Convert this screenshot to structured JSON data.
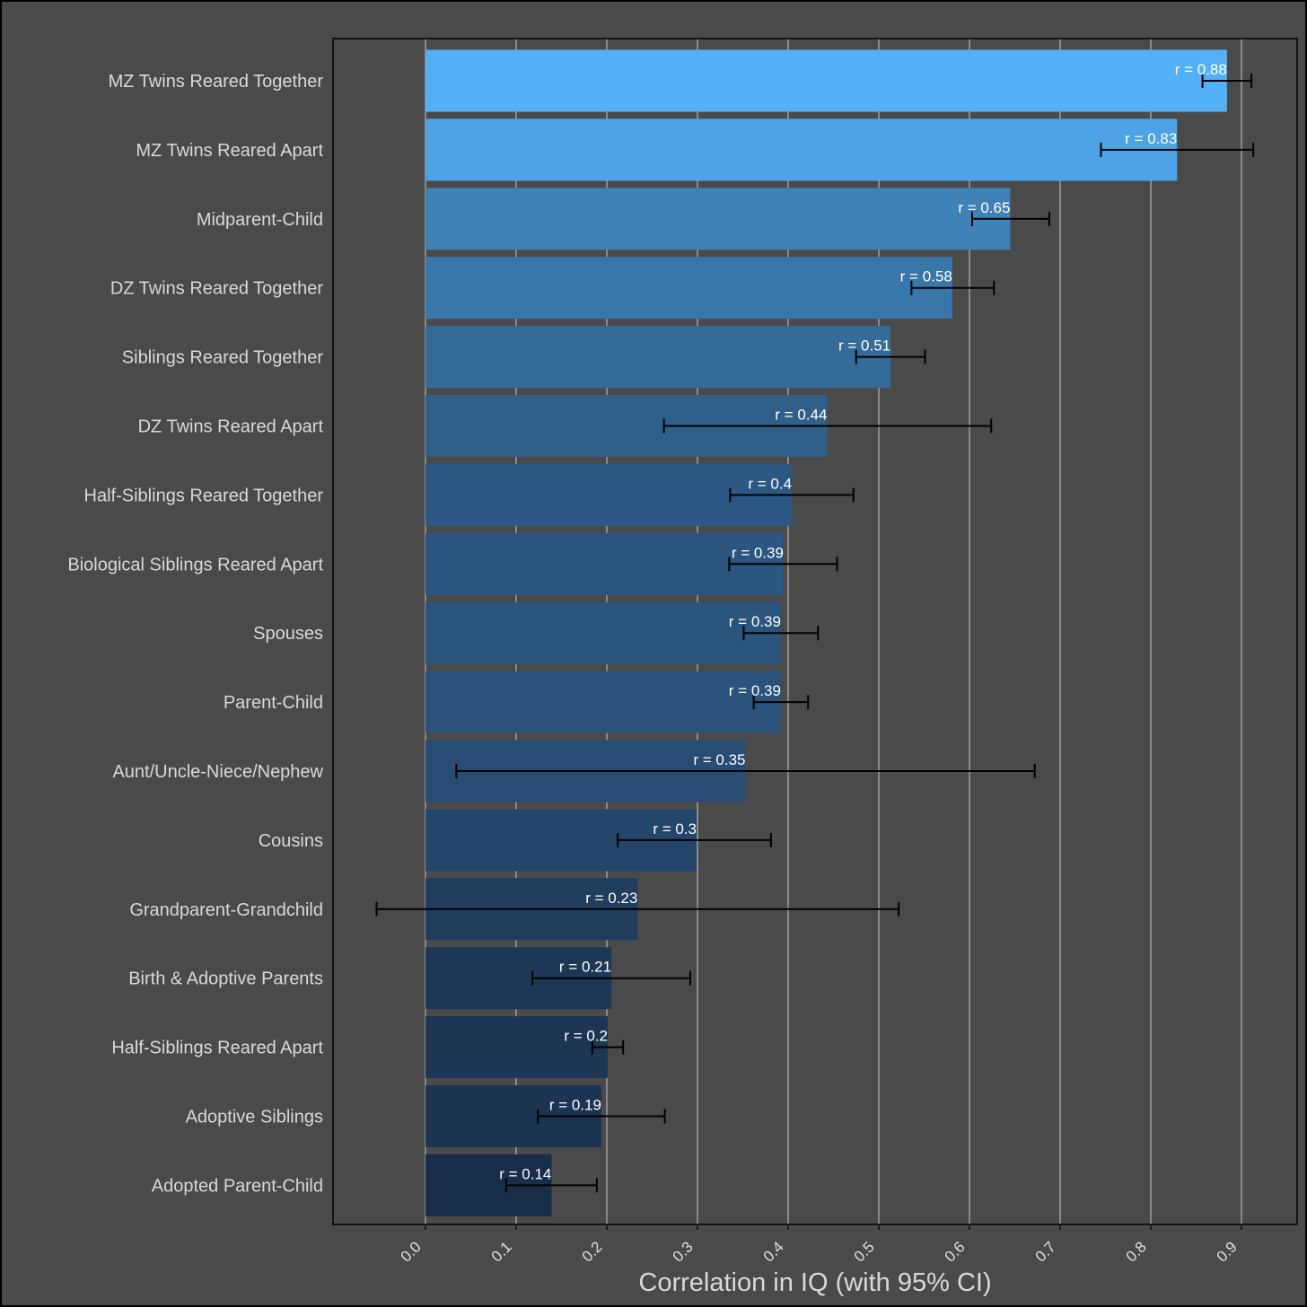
{
  "chart_data": {
    "type": "bar",
    "orientation": "horizontal",
    "xlabel": "Correlation in IQ (with 95% CI)",
    "xlim": [
      -0.1,
      0.96
    ],
    "xticks": [
      0.0,
      0.1,
      0.2,
      0.3,
      0.4,
      0.5,
      0.6,
      0.7,
      0.8,
      0.9
    ],
    "xtick_labels": [
      "0.0",
      "0.1",
      "0.2",
      "0.3",
      "0.4",
      "0.5",
      "0.6",
      "0.7",
      "0.8",
      "0.9"
    ],
    "grid": true,
    "colors": {
      "background": "#4a4a4a",
      "plot_border": "#000000",
      "grid": "#9a9a9a",
      "error_bar": "#000000"
    },
    "bars": [
      {
        "category": "MZ Twins Reared Together",
        "value": 0.884,
        "ci_low": 0.857,
        "ci_high": 0.911,
        "label": "r = 0.88",
        "color": "#54b0f6"
      },
      {
        "category": "MZ Twins Reared Apart",
        "value": 0.829,
        "ci_low": 0.745,
        "ci_high": 0.913,
        "label": "r = 0.83",
        "color": "#4ea3e6"
      },
      {
        "category": "Midparent-Child",
        "value": 0.645,
        "ci_low": 0.603,
        "ci_high": 0.688,
        "label": "r = 0.65",
        "color": "#3f82b8"
      },
      {
        "category": "DZ Twins Reared Together",
        "value": 0.581,
        "ci_low": 0.536,
        "ci_high": 0.627,
        "label": "r = 0.58",
        "color": "#3a77a9"
      },
      {
        "category": "Siblings Reared Together",
        "value": 0.513,
        "ci_low": 0.475,
        "ci_high": 0.551,
        "label": "r = 0.51",
        "color": "#356b99"
      },
      {
        "category": "DZ Twins Reared Apart",
        "value": 0.443,
        "ci_low": 0.263,
        "ci_high": 0.624,
        "label": "r = 0.44",
        "color": "#305f89"
      },
      {
        "category": "Half-Siblings Reared Together",
        "value": 0.404,
        "ci_low": 0.336,
        "ci_high": 0.472,
        "label": "r = 0.4",
        "color": "#2d5883"
      },
      {
        "category": "Biological Siblings Reared Apart",
        "value": 0.395,
        "ci_low": 0.335,
        "ci_high": 0.454,
        "label": "r = 0.39",
        "color": "#2c5680"
      },
      {
        "category": "Spouses",
        "value": 0.392,
        "ci_low": 0.351,
        "ci_high": 0.433,
        "label": "r = 0.39",
        "color": "#2b547d"
      },
      {
        "category": "Parent-Child",
        "value": 0.392,
        "ci_low": 0.362,
        "ci_high": 0.422,
        "label": "r = 0.39",
        "color": "#2a527a"
      },
      {
        "category": "Aunt/Uncle-Niece/Nephew",
        "value": 0.353,
        "ci_low": 0.034,
        "ci_high": 0.672,
        "label": "r = 0.35",
        "color": "#284c73"
      },
      {
        "category": "Cousins",
        "value": 0.299,
        "ci_low": 0.212,
        "ci_high": 0.381,
        "label": "r = 0.3",
        "color": "#25466b"
      },
      {
        "category": "Grandparent-Grandchild",
        "value": 0.234,
        "ci_low": -0.054,
        "ci_high": 0.522,
        "label": "r = 0.23",
        "color": "#203d5d"
      },
      {
        "category": "Birth & Adoptive Parents",
        "value": 0.205,
        "ci_low": 0.118,
        "ci_high": 0.292,
        "label": "r = 0.21",
        "color": "#1d3856"
      },
      {
        "category": "Half-Siblings Reared Apart",
        "value": 0.201,
        "ci_low": 0.184,
        "ci_high": 0.218,
        "label": "r = 0.2",
        "color": "#1c3654"
      },
      {
        "category": "Adoptive Siblings",
        "value": 0.194,
        "ci_low": 0.124,
        "ci_high": 0.264,
        "label": "r = 0.19",
        "color": "#1b3451"
      },
      {
        "category": "Adopted Parent-Child",
        "value": 0.139,
        "ci_low": 0.089,
        "ci_high": 0.189,
        "label": "r = 0.14",
        "color": "#182d48"
      }
    ]
  }
}
